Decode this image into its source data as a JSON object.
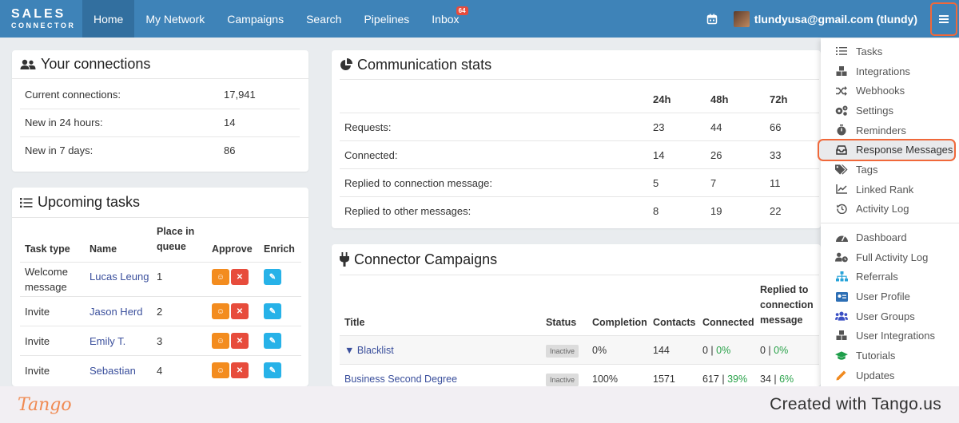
{
  "nav": {
    "logo_line1": "SALES",
    "logo_line2": "CONNECTOR",
    "items": [
      {
        "label": "Home"
      },
      {
        "label": "My Network"
      },
      {
        "label": "Campaigns"
      },
      {
        "label": "Search"
      },
      {
        "label": "Pipelines"
      },
      {
        "label": "Inbox",
        "badge": "64"
      }
    ],
    "user": "tlundyusa@gmail.com (tlundy)"
  },
  "connections": {
    "title": "Your connections",
    "rows": [
      {
        "label": "Current connections:",
        "value": "17,941"
      },
      {
        "label": "New in 24 hours:",
        "value": "14"
      },
      {
        "label": "New in 7 days:",
        "value": "86"
      }
    ]
  },
  "tasks": {
    "title": "Upcoming tasks",
    "headers": {
      "type": "Task type",
      "name": "Name",
      "place": "Place in queue",
      "approve": "Approve",
      "enrich": "Enrich"
    },
    "rows": [
      {
        "type": "Welcome message",
        "name": "Lucas Leung",
        "place": "1"
      },
      {
        "type": "Invite",
        "name": "Jason Herd",
        "place": "2"
      },
      {
        "type": "Invite",
        "name": "Emily T.",
        "place": "3"
      },
      {
        "type": "Invite",
        "name": "Sebastian",
        "place": "4"
      }
    ]
  },
  "stats": {
    "title": "Communication stats",
    "headers": [
      "24h",
      "48h",
      "72h"
    ],
    "rows": [
      {
        "label": "Requests:",
        "v": [
          "23",
          "44",
          "66"
        ]
      },
      {
        "label": "Connected:",
        "v": [
          "14",
          "26",
          "33"
        ]
      },
      {
        "label": "Replied to connection message:",
        "v": [
          "5",
          "7",
          "11"
        ]
      },
      {
        "label": "Replied to other messages:",
        "v": [
          "8",
          "19",
          "22"
        ]
      }
    ]
  },
  "campaigns": {
    "title": "Connector Campaigns",
    "headers": {
      "title": "Title",
      "status": "Status",
      "completion": "Completion",
      "contacts": "Contacts",
      "connected": "Connected",
      "replied": "Replied to connection message"
    },
    "rows": [
      {
        "title": "Blacklist",
        "status": "Inactive",
        "completion": "0%",
        "contacts": "144",
        "connected": "0",
        "connected_pct": "0%",
        "replied": "0",
        "replied_pct": "0%"
      },
      {
        "title": "Business Second Degree",
        "status": "Inactive",
        "completion": "100%",
        "contacts": "1571",
        "connected": "617",
        "connected_pct": "39%",
        "replied": "34",
        "replied_pct": "6%"
      }
    ]
  },
  "menu": {
    "group1": [
      {
        "label": "Tasks",
        "icon": "list-icon"
      },
      {
        "label": "Integrations",
        "icon": "cubes-icon"
      },
      {
        "label": "Webhooks",
        "icon": "shuffle-icon"
      },
      {
        "label": "Settings",
        "icon": "cogs-icon"
      },
      {
        "label": "Reminders",
        "icon": "stopwatch-icon"
      },
      {
        "label": "Response Messages",
        "icon": "inbox-icon"
      },
      {
        "label": "Tags",
        "icon": "tags-icon"
      },
      {
        "label": "Linked Rank",
        "icon": "chart-line-icon"
      },
      {
        "label": "Activity Log",
        "icon": "history-icon"
      }
    ],
    "group2": [
      {
        "label": "Dashboard",
        "icon": "gauge-icon"
      },
      {
        "label": "Full Activity Log",
        "icon": "user-clock-icon"
      },
      {
        "label": "Referrals",
        "icon": "sitemap-icon"
      },
      {
        "label": "User Profile",
        "icon": "id-card-icon"
      },
      {
        "label": "User Groups",
        "icon": "users-icon"
      },
      {
        "label": "User Integrations",
        "icon": "cubes-icon"
      },
      {
        "label": "Tutorials",
        "icon": "graduation-cap-icon"
      },
      {
        "label": "Updates",
        "icon": "pencil-icon"
      }
    ]
  },
  "footer": {
    "brand": "Tango",
    "created": "Created with Tango.us"
  }
}
